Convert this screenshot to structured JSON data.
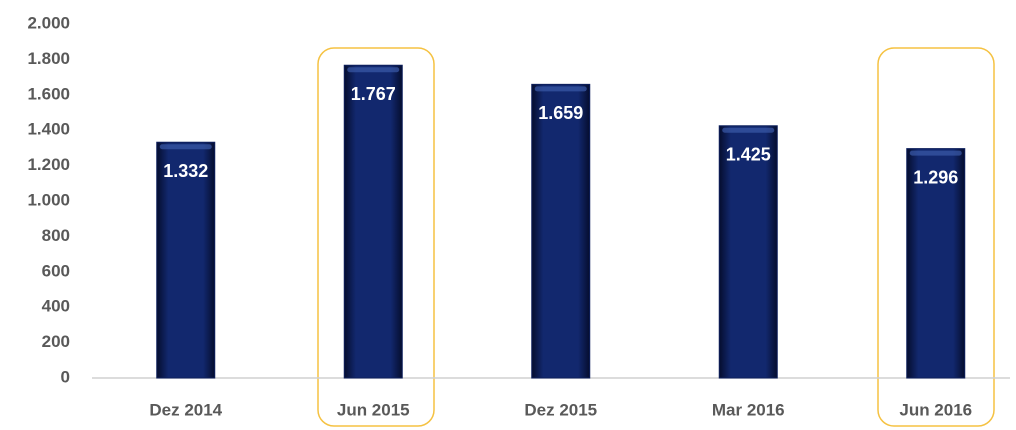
{
  "chart_data": {
    "type": "bar",
    "categories": [
      "Dez 2014",
      "Jun 2015",
      "Dez 2015",
      "Mar 2016",
      "Jun 2016"
    ],
    "values": [
      1332,
      1767,
      1659,
      1425,
      1296
    ],
    "value_labels": [
      "1.332",
      "1.767",
      "1.659",
      "1.425",
      "1.296"
    ],
    "color": "#0d1f5c",
    "ylim": [
      0,
      2000
    ],
    "yticks": [
      0,
      200,
      400,
      600,
      800,
      {
        "value": 1000,
        "label": "1.000"
      },
      {
        "value": 1200,
        "label": "1.200"
      },
      {
        "value": 1400,
        "label": "1.400"
      },
      {
        "value": 1600,
        "label": "1.600"
      },
      {
        "value": 1800,
        "label": "1.800"
      },
      {
        "value": 2000,
        "label": "2.000"
      }
    ],
    "grid": false
  }
}
